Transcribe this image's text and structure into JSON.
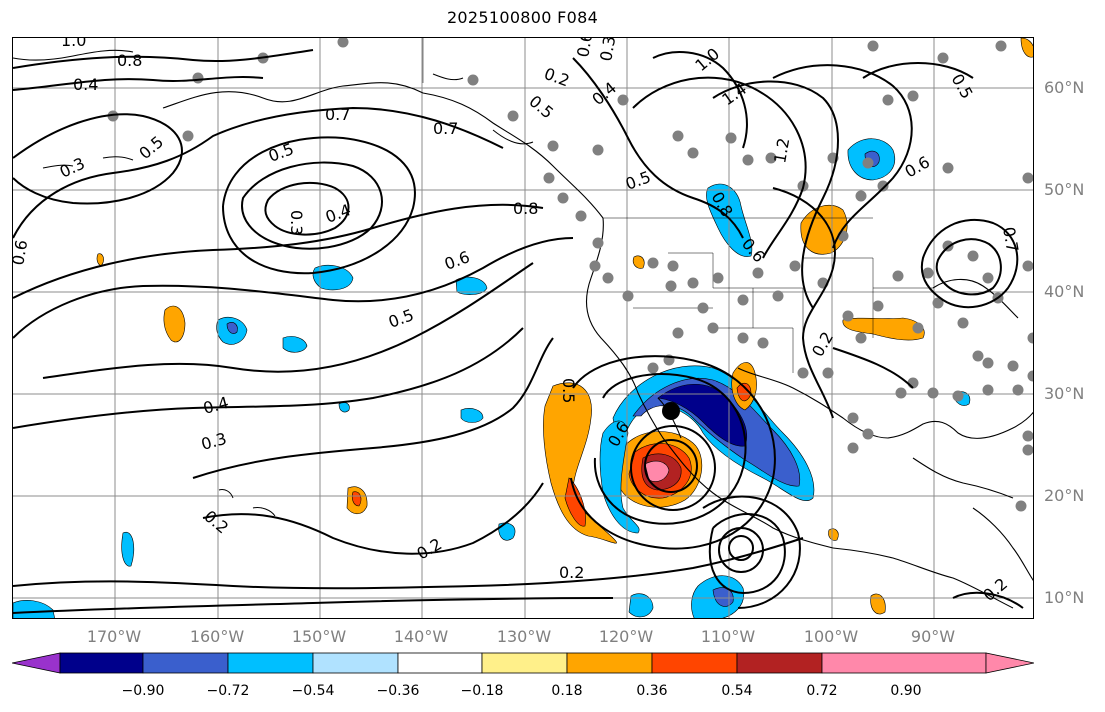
{
  "title": "2025100800 F084",
  "lat_labels": [
    "60°N",
    "50°N",
    "40°N",
    "30°N",
    "20°N",
    "10°N"
  ],
  "lon_labels": [
    "170°W",
    "160°W",
    "150°W",
    "140°W",
    "130°W",
    "120°W",
    "110°W",
    "100°W",
    "90°W"
  ],
  "colorbar": {
    "ticks": [
      "−0.90",
      "−0.72",
      "−0.54",
      "−0.36",
      "−0.18",
      "0.18",
      "0.36",
      "0.54",
      "0.72",
      "0.90"
    ],
    "colors": [
      "#9932cc",
      "#00008b",
      "#3a5fcd",
      "#00bfff",
      "#b0e2ff",
      "#ffffff",
      "#fff08a",
      "#ffa500",
      "#ff4500",
      "#b22222",
      "#ff88aa"
    ]
  },
  "contour_labels": [
    "1.0",
    "0.8",
    "0.4",
    "0.5",
    "0.3",
    "0.7",
    "0.5",
    "0.3",
    "0.4",
    "0.7",
    "0.8",
    "0.6",
    "0.6",
    "0.5",
    "0.6",
    "0.4",
    "0.3",
    "0.2",
    "0.2",
    "0.2",
    "0.5",
    "0.6",
    "0.2",
    "0.3",
    "0.5",
    "0.4",
    "1.0",
    "1.4",
    "1.2",
    "0.5",
    "0.8",
    "0.6",
    "0.6",
    "0.5",
    "0.2",
    "0.2",
    "0.7"
  ]
}
